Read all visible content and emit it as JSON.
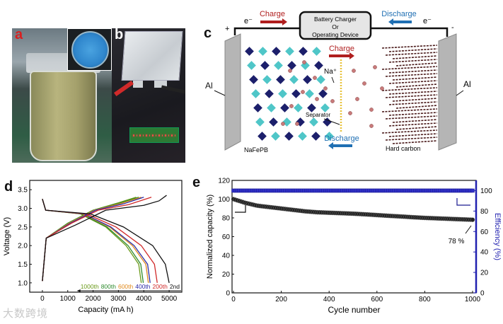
{
  "panel_labels": {
    "a": "a",
    "b": "b",
    "c": "c",
    "d": "d",
    "e": "e"
  },
  "watermark": "大数跨境",
  "diagram_c": {
    "device_box": [
      "Battery Charger",
      "Or",
      "Operating Device"
    ],
    "top_charge": "Charge",
    "top_discharge": "Discharge",
    "electron_left": "e⁻",
    "electron_right": "e⁻",
    "plus": "+",
    "minus": "-",
    "mid_charge": "Charge",
    "mid_discharge": "Discharge",
    "ion": "Na⁺",
    "separator": "Separator",
    "left_collector": "Al",
    "right_collector": "Al",
    "cathode": "NaFePB",
    "anode": "Hard carbon",
    "colors": {
      "charge": "#b01e1e",
      "discharge": "#1f6fb3",
      "cathode_dark": "#1c1f6b",
      "cathode_light": "#4fc6c8",
      "ion": "#c87a7a",
      "carbon": "#4a1a1a",
      "separator": "#e8c23a"
    }
  },
  "chart_data": [
    {
      "type": "line",
      "panel": "d",
      "xlabel": "Capacity (mA h)",
      "ylabel": "Voltage (V)",
      "xlim": [
        -500,
        5500
      ],
      "ylim": [
        0.75,
        3.75
      ],
      "xticks": [
        "0",
        "1000",
        "2000",
        "3000",
        "4000",
        "5000"
      ],
      "xtick_values": [
        0,
        1000,
        2000,
        3000,
        4000,
        5000
      ],
      "yticks": [
        "1.0",
        "1.5",
        "2.0",
        "2.5",
        "3.0",
        "3.5"
      ],
      "ytick_values": [
        1.0,
        1.5,
        2.0,
        2.5,
        3.0,
        3.5
      ],
      "legend_placement": "bottom-right",
      "series": [
        {
          "name": "1000th",
          "color": "#6a9a1a",
          "charge": [
            [
              0,
              1.05
            ],
            [
              150,
              2.2
            ],
            [
              1000,
              2.6
            ],
            [
              2000,
              2.95
            ],
            [
              3000,
              3.15
            ],
            [
              3700,
              3.3
            ]
          ],
          "discharge": [
            [
              0,
              3.25
            ],
            [
              130,
              2.95
            ],
            [
              1500,
              2.85
            ],
            [
              2500,
              2.5
            ],
            [
              3300,
              2.0
            ],
            [
              3800,
              1.5
            ],
            [
              3900,
              1.0
            ]
          ]
        },
        {
          "name": "800th",
          "color": "#2e8b2e",
          "charge": [
            [
              0,
              1.05
            ],
            [
              150,
              2.2
            ],
            [
              1000,
              2.6
            ],
            [
              2000,
              2.95
            ],
            [
              3000,
              3.13
            ],
            [
              3800,
              3.3
            ]
          ],
          "discharge": [
            [
              0,
              3.25
            ],
            [
              130,
              2.95
            ],
            [
              1550,
              2.85
            ],
            [
              2550,
              2.5
            ],
            [
              3380,
              2.0
            ],
            [
              3880,
              1.5
            ],
            [
              3980,
              1.0
            ]
          ]
        },
        {
          "name": "600th",
          "color": "#e08a1e",
          "charge": [
            [
              0,
              1.05
            ],
            [
              150,
              2.2
            ],
            [
              1050,
              2.6
            ],
            [
              2050,
              2.95
            ],
            [
              3100,
              3.13
            ],
            [
              3900,
              3.3
            ]
          ],
          "discharge": [
            [
              0,
              3.25
            ],
            [
              130,
              2.95
            ],
            [
              1600,
              2.85
            ],
            [
              2650,
              2.5
            ],
            [
              3550,
              2.0
            ],
            [
              4080,
              1.5
            ],
            [
              4180,
              1.0
            ]
          ]
        },
        {
          "name": "400th",
          "color": "#2b2ba8",
          "charge": [
            [
              0,
              1.05
            ],
            [
              150,
              2.2
            ],
            [
              1100,
              2.6
            ],
            [
              2100,
              2.95
            ],
            [
              3200,
              3.12
            ],
            [
              4000,
              3.3
            ]
          ],
          "discharge": [
            [
              0,
              3.25
            ],
            [
              130,
              2.95
            ],
            [
              1650,
              2.85
            ],
            [
              2700,
              2.5
            ],
            [
              3620,
              2.0
            ],
            [
              4150,
              1.5
            ],
            [
              4250,
              1.0
            ]
          ]
        },
        {
          "name": "200th",
          "color": "#d02828",
          "charge": [
            [
              0,
              1.05
            ],
            [
              150,
              2.2
            ],
            [
              1150,
              2.6
            ],
            [
              2200,
              2.95
            ],
            [
              3400,
              3.1
            ],
            [
              4300,
              3.3
            ]
          ],
          "discharge": [
            [
              0,
              3.25
            ],
            [
              130,
              2.95
            ],
            [
              1750,
              2.85
            ],
            [
              2900,
              2.5
            ],
            [
              3900,
              2.0
            ],
            [
              4420,
              1.5
            ],
            [
              4530,
              1.0
            ]
          ]
        },
        {
          "name": "2nd",
          "color": "#111111",
          "charge": [
            [
              0,
              1.05
            ],
            [
              150,
              2.2
            ],
            [
              1300,
              2.55
            ],
            [
              2500,
              2.95
            ],
            [
              4000,
              3.08
            ],
            [
              4600,
              3.2
            ],
            [
              4900,
              3.35
            ]
          ],
          "discharge": [
            [
              0,
              3.25
            ],
            [
              130,
              2.95
            ],
            [
              1900,
              2.85
            ],
            [
              3200,
              2.5
            ],
            [
              4350,
              2.0
            ],
            [
              4850,
              1.5
            ],
            [
              5000,
              1.0
            ]
          ]
        }
      ]
    },
    {
      "type": "scatter",
      "panel": "e",
      "xlabel": "Cycle number",
      "ylabel": "Normalized capacity (%)",
      "y2label": "Efficiency (%)",
      "xlim": [
        0,
        1000
      ],
      "ylim": [
        0,
        120
      ],
      "y2lim": [
        0,
        110
      ],
      "xticks": [
        "0",
        "200",
        "400",
        "600",
        "800",
        "1000"
      ],
      "xtick_values": [
        0,
        200,
        400,
        600,
        800,
        1000
      ],
      "yticks": [
        "0",
        "20",
        "40",
        "60",
        "80",
        "100",
        "120"
      ],
      "ytick_values": [
        0,
        20,
        40,
        60,
        80,
        100,
        120
      ],
      "y2ticks": [
        "0",
        "20",
        "40",
        "60",
        "80",
        "100"
      ],
      "y2tick_values": [
        0,
        20,
        40,
        60,
        80,
        100
      ],
      "annotation": "78 %",
      "series": [
        {
          "name": "Normalized capacity",
          "axis": "left",
          "color": "#111111",
          "x": [
            0,
            50,
            100,
            150,
            200,
            250,
            300,
            350,
            400,
            450,
            500,
            550,
            600,
            650,
            700,
            750,
            800,
            850,
            900,
            950,
            1000
          ],
          "y": [
            100,
            96,
            93,
            91.5,
            90,
            88.5,
            87,
            86,
            85.5,
            85,
            84.5,
            83.8,
            83,
            82.2,
            81.5,
            80.7,
            80,
            79.5,
            79,
            78.5,
            78
          ]
        },
        {
          "name": "Efficiency",
          "axis": "right",
          "color": "#2121b0",
          "x": [
            0,
            1000
          ],
          "y": [
            100,
            100
          ]
        }
      ]
    }
  ]
}
